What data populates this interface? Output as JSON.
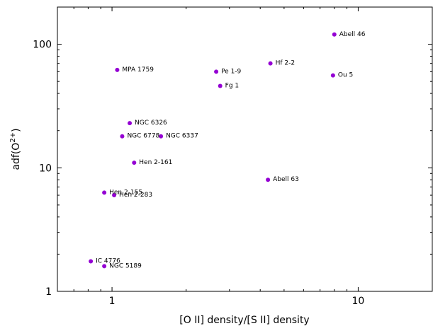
{
  "chart_data": {
    "type": "scatter",
    "title": "",
    "xlabel": "[O II] density/[S II] density",
    "ylabel": "adf(O",
    "ylabel_sup": "2+",
    "ylabel_close": ")",
    "xscale": "log",
    "yscale": "log",
    "xlim": [
      0.6,
      20
    ],
    "ylim": [
      1,
      200
    ],
    "grid": false,
    "x_tick_labels": [
      {
        "value": 1,
        "label": "1"
      },
      {
        "value": 10,
        "label": "10"
      }
    ],
    "y_tick_labels": [
      {
        "value": 1,
        "label": "1"
      },
      {
        "value": 10,
        "label": "10"
      },
      {
        "value": 100,
        "label": "100"
      }
    ],
    "marker_color": "#9400D3",
    "points": [
      {
        "name": "Abell 46",
        "x": 8.0,
        "y": 120
      },
      {
        "name": "Hf 2-2",
        "x": 4.4,
        "y": 70
      },
      {
        "name": "Ou 5",
        "x": 7.9,
        "y": 56
      },
      {
        "name": "Pe 1-9",
        "x": 2.65,
        "y": 60
      },
      {
        "name": "Fg 1",
        "x": 2.75,
        "y": 46
      },
      {
        "name": "MPA 1759",
        "x": 1.05,
        "y": 62
      },
      {
        "name": "NGC 6326",
        "x": 1.18,
        "y": 23
      },
      {
        "name": "NGC 6778",
        "x": 1.1,
        "y": 18
      },
      {
        "name": "NGC 6337",
        "x": 1.58,
        "y": 18
      },
      {
        "name": "Hen 2-161",
        "x": 1.23,
        "y": 11
      },
      {
        "name": "Abell 63",
        "x": 4.3,
        "y": 8
      },
      {
        "name": "Hen 2-155",
        "x": 0.93,
        "y": 6.3
      },
      {
        "name": "Hen 2-283",
        "x": 1.02,
        "y": 6.0
      },
      {
        "name": "IC 4776",
        "x": 0.82,
        "y": 1.75
      },
      {
        "name": "NGC 5189",
        "x": 0.93,
        "y": 1.6
      }
    ]
  }
}
